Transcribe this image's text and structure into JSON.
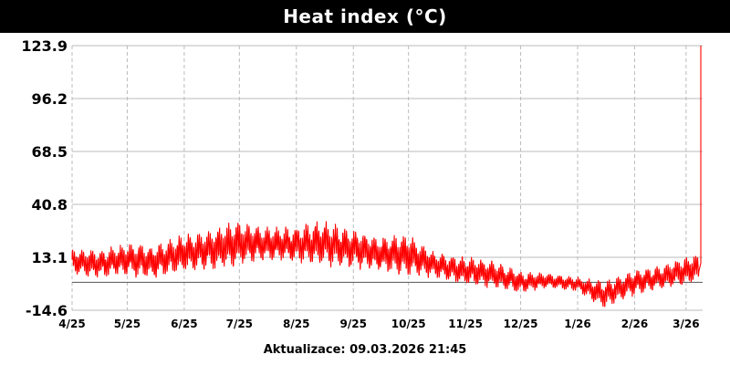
{
  "title": "Heat index (°C)",
  "footer": "Aktualizace: 09.03.2026 21:45",
  "colors": {
    "series": "#ff0000",
    "grid": "#bbbbbb",
    "baseline": "#555555",
    "header_bg": "#000000"
  },
  "chart_data": {
    "type": "line",
    "title": "Heat index (°C)",
    "xlabel": "",
    "ylabel": "",
    "ylim": [
      -14.6,
      123.9
    ],
    "xlim": [
      "2025-04-01",
      "2026-03-10"
    ],
    "y_ticks": [
      "123.9",
      "96.2",
      "68.5",
      "40.8",
      "13.1",
      "-14.6"
    ],
    "x_ticks": [
      {
        "label": "4/25",
        "date": "2025-04-01"
      },
      {
        "label": "5/25",
        "date": "2025-05-01"
      },
      {
        "label": "6/25",
        "date": "2025-06-01"
      },
      {
        "label": "7/25",
        "date": "2025-07-01"
      },
      {
        "label": "8/25",
        "date": "2025-08-01"
      },
      {
        "label": "9/25",
        "date": "2025-09-01"
      },
      {
        "label": "10/25",
        "date": "2025-10-01"
      },
      {
        "label": "11/25",
        "date": "2025-11-01"
      },
      {
        "label": "12/25",
        "date": "2025-12-01"
      },
      {
        "label": "1/26",
        "date": "2026-01-01"
      },
      {
        "label": "2/26",
        "date": "2026-02-01"
      },
      {
        "label": "3/26",
        "date": "2026-03-01"
      }
    ],
    "baseline_y": 0,
    "grid": true,
    "series": [
      {
        "envelope": [
          {
            "date": "2025-04-01",
            "min": 4,
            "max": 18
          },
          {
            "date": "2025-04-15",
            "min": 2,
            "max": 17
          },
          {
            "date": "2025-05-01",
            "min": 3,
            "max": 21
          },
          {
            "date": "2025-05-15",
            "min": 1,
            "max": 20
          },
          {
            "date": "2025-06-01",
            "min": 5,
            "max": 26
          },
          {
            "date": "2025-06-15",
            "min": 6,
            "max": 28
          },
          {
            "date": "2025-07-01",
            "min": 8,
            "max": 33
          },
          {
            "date": "2025-07-15",
            "min": 11,
            "max": 29
          },
          {
            "date": "2025-08-01",
            "min": 10,
            "max": 30
          },
          {
            "date": "2025-08-15",
            "min": 8,
            "max": 33
          },
          {
            "date": "2025-09-01",
            "min": 7,
            "max": 28
          },
          {
            "date": "2025-09-15",
            "min": 5,
            "max": 25
          },
          {
            "date": "2025-10-01",
            "min": 3,
            "max": 26
          },
          {
            "date": "2025-10-15",
            "min": 2,
            "max": 16
          },
          {
            "date": "2025-11-01",
            "min": -2,
            "max": 14
          },
          {
            "date": "2025-11-15",
            "min": -3,
            "max": 12
          },
          {
            "date": "2025-12-01",
            "min": -6,
            "max": 6
          },
          {
            "date": "2025-12-15",
            "min": -3,
            "max": 5
          },
          {
            "date": "2026-01-01",
            "min": -5,
            "max": 3
          },
          {
            "date": "2026-01-15",
            "min": -14,
            "max": 1
          },
          {
            "date": "2026-02-01",
            "min": -7,
            "max": 7
          },
          {
            "date": "2026-02-15",
            "min": -4,
            "max": 9
          },
          {
            "date": "2026-03-01",
            "min": -2,
            "max": 14
          },
          {
            "date": "2026-03-08",
            "min": 0,
            "max": 16
          },
          {
            "date": "2026-03-09",
            "min": 0,
            "max": 123.9
          }
        ]
      }
    ]
  }
}
